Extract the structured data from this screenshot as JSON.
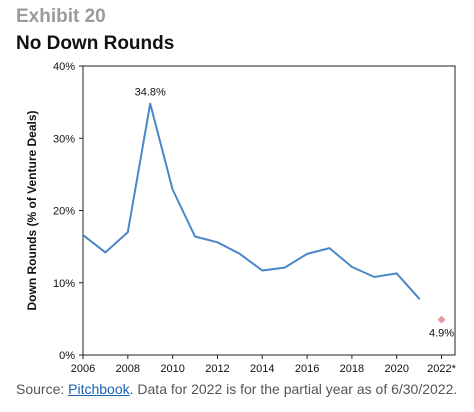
{
  "header": {
    "exhibit": "Exhibit 20",
    "title": "No Down Rounds"
  },
  "footer": {
    "source_prefix": "Source: ",
    "source_link": "Pitchbook",
    "source_suffix": ". Data for 2022 is for the partial year as of 6/30/2022."
  },
  "chart_data": {
    "type": "line",
    "title": "No Down Rounds",
    "ylabel": "Down Rounds (% of Venture Deals)",
    "xlabel": "",
    "xlim": [
      2006,
      2022.6
    ],
    "ylim": [
      0,
      40
    ],
    "x_ticks": [
      "2006",
      "2008",
      "2010",
      "2012",
      "2014",
      "2016",
      "2018",
      "2020",
      "2022*"
    ],
    "y_ticks": [
      "0%",
      "10%",
      "20%",
      "30%",
      "40%"
    ],
    "grid": false,
    "series": [
      {
        "color": "#4a86c8",
        "x": [
          2006,
          2007,
          2008,
          2009,
          2010,
          2011,
          2012,
          2013,
          2014,
          2015,
          2016,
          2017,
          2018,
          2019,
          2020,
          2021
        ],
        "y": [
          16.6,
          14.2,
          17.0,
          34.8,
          22.9,
          16.4,
          15.6,
          14.0,
          11.7,
          12.1,
          14.0,
          14.8,
          12.2,
          10.8,
          11.3,
          7.8
        ]
      }
    ],
    "points": [
      {
        "x": 2022,
        "y": 4.9,
        "color": "#e59aa0"
      }
    ],
    "data_labels": [
      {
        "x": 2009,
        "y": 34.8,
        "text": "34.8%",
        "position": "above"
      },
      {
        "x": 2022,
        "y": 4.9,
        "text": "4.9%",
        "position": "below"
      }
    ]
  }
}
